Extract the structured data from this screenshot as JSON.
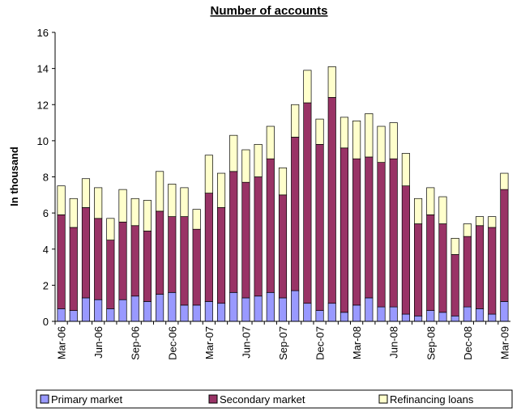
{
  "chart_data": {
    "type": "stacked_bar",
    "title": "Number of accounts",
    "y_label": "In thousand",
    "categories": [
      "Mar-06",
      null,
      null,
      "Jun-06",
      null,
      null,
      "Sep-06",
      null,
      null,
      "Dec-06",
      null,
      null,
      "Mar-07",
      null,
      null,
      "Jun-07",
      null,
      null,
      "Sep-07",
      null,
      null,
      "Dec-07",
      null,
      null,
      "Mar-08",
      null,
      null,
      "Jun-08",
      null,
      null,
      "Sep-08",
      null,
      null,
      "Dec-08",
      null,
      null,
      "Mar-09"
    ],
    "series": [
      {
        "name": "Primary market",
        "color": "#9999ff",
        "values": [
          0.7,
          0.6,
          1.3,
          1.2,
          0.7,
          1.2,
          1.4,
          1.1,
          1.5,
          1.6,
          0.9,
          0.9,
          1.1,
          1.0,
          1.6,
          1.3,
          1.4,
          1.6,
          1.3,
          1.7,
          1.0,
          0.6,
          1.0,
          0.5,
          0.9,
          1.3,
          0.8,
          0.8,
          0.4,
          0.3,
          0.6,
          0.5,
          0.3,
          0.8,
          0.7,
          0.4,
          1.1
        ]
      },
      {
        "name": "Secondary market",
        "color": "#993366",
        "values": [
          5.2,
          4.6,
          5.0,
          4.5,
          3.8,
          4.3,
          3.9,
          3.9,
          4.6,
          4.2,
          4.9,
          4.2,
          6.0,
          5.3,
          6.7,
          6.4,
          6.6,
          7.4,
          5.7,
          8.5,
          11.1,
          9.2,
          11.4,
          9.1,
          8.1,
          7.8,
          8.0,
          8.2,
          7.1,
          5.1,
          5.3,
          4.9,
          3.4,
          3.9,
          4.6,
          4.8,
          6.2
        ]
      },
      {
        "name": "Refinancing loans",
        "color": "#ffffcc",
        "values": [
          1.6,
          1.6,
          1.6,
          1.7,
          1.2,
          1.8,
          1.5,
          1.7,
          2.2,
          1.8,
          1.6,
          1.1,
          2.1,
          1.9,
          2.0,
          1.8,
          1.8,
          1.8,
          1.5,
          1.8,
          1.8,
          1.4,
          1.7,
          1.7,
          2.1,
          2.4,
          2.0,
          2.0,
          1.8,
          1.4,
          1.5,
          1.5,
          0.9,
          0.7,
          0.5,
          0.6,
          0.9
        ]
      }
    ],
    "ylim": [
      0,
      16
    ],
    "yticks": [
      0,
      2,
      4,
      6,
      8,
      10,
      12,
      14,
      16
    ]
  }
}
